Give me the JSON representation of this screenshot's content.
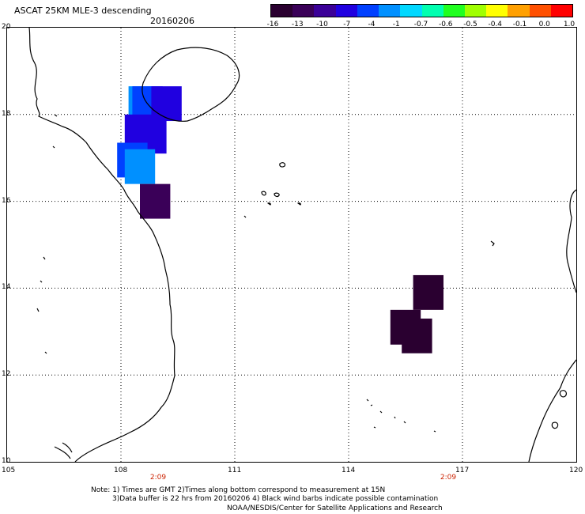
{
  "header": {
    "title": "ASCAT 25KM MLE-3 descending",
    "date": "20160206"
  },
  "colorbar": {
    "labels": [
      "-16",
      "-13",
      "-10",
      "-7",
      "-4",
      "-1",
      "-0.7",
      "-0.6",
      "-0.5",
      "-0.4",
      "-0.1",
      "0.0",
      "1.0"
    ],
    "colors": [
      "#2a0030",
      "#3a0058",
      "#3b0098",
      "#2000e0",
      "#0040ff",
      "#0090ff",
      "#00d8ff",
      "#00ffb0",
      "#20ff20",
      "#a0ff00",
      "#ffff00",
      "#ffa000",
      "#ff5000",
      "#ff0000"
    ]
  },
  "axes": {
    "lon_labels": [
      "105",
      "108",
      "111",
      "114",
      "117",
      "120"
    ],
    "lat_labels": [
      "20",
      "18",
      "16",
      "14",
      "12",
      "10"
    ]
  },
  "times": [
    "2:09",
    "2:09"
  ],
  "notes": [
    "Note: 1) Times are GMT 2)Times along bottom correspond to measurement at 15N",
    "3)Data buffer is 22 hrs from 20160206 4) Black wind barbs indicate possible contamination",
    "NOAA/NESDIS/Center for Satellite Applications and Research"
  ],
  "data_cells": [
    {
      "lon": 108.6,
      "lat": 18.25,
      "value": -1
    },
    {
      "lon": 108.7,
      "lat": 18.25,
      "value": -4
    },
    {
      "lon": 109.2,
      "lat": 18.25,
      "value": -7
    },
    {
      "lon": 108.5,
      "lat": 17.6,
      "value": -7
    },
    {
      "lon": 108.8,
      "lat": 17.5,
      "value": -7
    },
    {
      "lon": 108.3,
      "lat": 16.95,
      "value": -4
    },
    {
      "lon": 108.5,
      "lat": 16.8,
      "value": -1
    },
    {
      "lon": 108.9,
      "lat": 16.0,
      "value": -13
    },
    {
      "lon": 116.1,
      "lat": 13.9,
      "value": -16
    },
    {
      "lon": 115.5,
      "lat": 13.1,
      "value": -16
    },
    {
      "lon": 115.8,
      "lat": 12.9,
      "value": -16
    }
  ]
}
